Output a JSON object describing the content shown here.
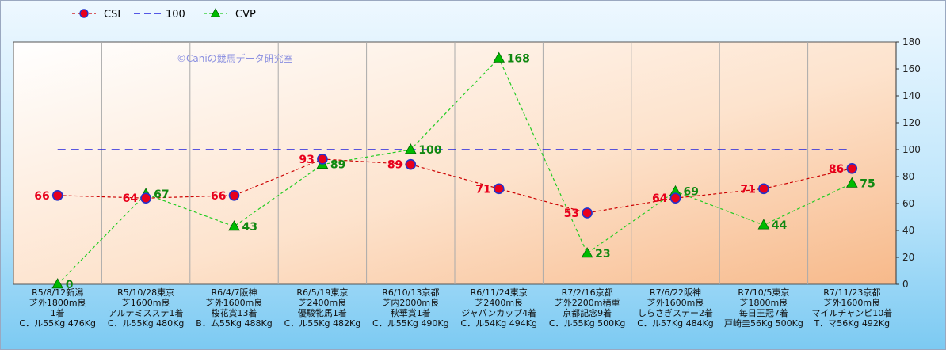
{
  "legend": [
    {
      "name": "CSI",
      "style": "red-dashed-circle"
    },
    {
      "name": "100",
      "style": "blue-dashed"
    },
    {
      "name": "CVP",
      "style": "green-dashed-triangle"
    }
  ],
  "watermark": "©Caniの競馬データ研究室",
  "chart_data": {
    "type": "line",
    "ylim": [
      0,
      180
    ],
    "yticks": [
      0,
      20,
      40,
      60,
      80,
      100,
      120,
      140,
      160,
      180
    ],
    "y_axis_side": "right",
    "grid": "vertical",
    "legend_position": "top-left",
    "categories": [
      [
        "R5/8/12新潟",
        "芝外1800m良",
        "1着",
        "C．ル55Kg 476Kg"
      ],
      [
        "R5/10/28東京",
        "芝1600m良",
        "アルテミスステ1着",
        "C．ル55Kg 480Kg"
      ],
      [
        "R6/4/7阪神",
        "芝外1600m良",
        "桜花賞13着",
        "B．ム55Kg 488Kg"
      ],
      [
        "R6/5/19東京",
        "芝2400m良",
        "優駿牝馬1着",
        "C．ル55Kg 482Kg"
      ],
      [
        "R6/10/13京都",
        "芝内2000m良",
        "秋華賞1着",
        "C．ル55Kg 490Kg"
      ],
      [
        "R6/11/24東京",
        "芝2400m良",
        "ジャパンカップ4着",
        "C．ル54Kg 494Kg"
      ],
      [
        "R7/2/16京都",
        "芝外2200m稍重",
        "京都記念9着",
        "C．ル55Kg 500Kg"
      ],
      [
        "R7/6/22阪神",
        "芝外1600m良",
        "しらさぎステー2着",
        "C．ル57Kg 484Kg"
      ],
      [
        "R7/10/5東京",
        "芝1800m良",
        "毎日王冠7着",
        "戸崎圭56Kg 500Kg"
      ],
      [
        "R7/11/23京都",
        "芝外1600m良",
        "マイルチャンピ10着",
        "T．マ56Kg 492Kg"
      ]
    ],
    "series": [
      {
        "name": "CSI",
        "color": "#cc0000",
        "marker": "circle",
        "marker_fill": "#e8001c",
        "marker_edge": "#2233cc",
        "values": [
          66,
          64,
          66,
          93,
          89,
          71,
          53,
          64,
          71,
          86
        ]
      },
      {
        "name": "100",
        "color": "#2222dd",
        "marker": "none",
        "values": [
          100,
          100,
          100,
          100,
          100,
          100,
          100,
          100,
          100,
          100
        ]
      },
      {
        "name": "CVP",
        "color": "#22cc22",
        "marker": "triangle",
        "marker_fill": "#00bb00",
        "values": [
          0,
          67,
          43,
          89,
          100,
          168,
          23,
          69,
          44,
          75
        ]
      }
    ],
    "label_colors": {
      "CSI": "#e8001c",
      "CVP": "#118811"
    }
  }
}
